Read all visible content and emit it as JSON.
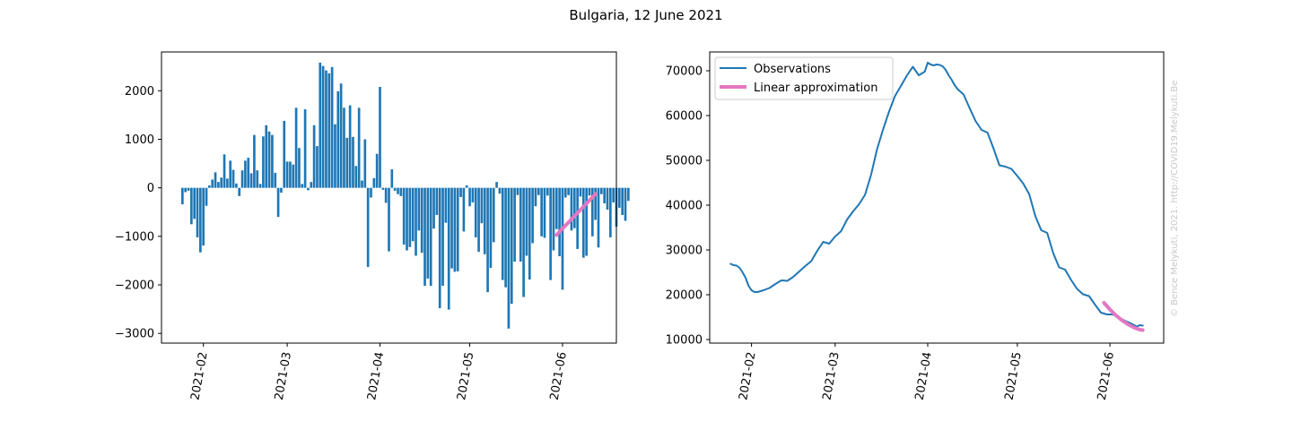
{
  "figure": {
    "title": "Bulgaria, 12 June 2021",
    "watermark": "© Bence Melykuti, 2021. http://COVID19.Melykuti.Be"
  },
  "colors": {
    "bar": "#1f77b4",
    "observations": "#1f77b4",
    "approximation": "#e377c2",
    "axis": "#000000"
  },
  "chart_data": [
    {
      "type": "bar",
      "title": "",
      "xlabel": "",
      "ylabel": "",
      "x_start": "2021-01-25",
      "x_end": "2021-06-12",
      "xlim": [
        "2021-01-18",
        "2021-06-19"
      ],
      "ylim": [
        -3200,
        2800
      ],
      "yticks": [
        -3000,
        -2000,
        -1000,
        0,
        1000,
        2000
      ],
      "xticks": [
        "2021-02",
        "2021-03",
        "2021-04",
        "2021-05",
        "2021-06"
      ],
      "grid": false,
      "values": [
        -340,
        -90,
        -60,
        -750,
        -640,
        -1020,
        -1330,
        -1190,
        -370,
        50,
        170,
        320,
        120,
        210,
        690,
        190,
        560,
        370,
        90,
        -170,
        360,
        560,
        620,
        300,
        1090,
        360,
        80,
        1060,
        1290,
        1160,
        1090,
        310,
        -600,
        -100,
        1380,
        540,
        540,
        480,
        1650,
        820,
        80,
        1620,
        -50,
        120,
        1290,
        860,
        2580,
        2510,
        2420,
        2360,
        2490,
        1310,
        1990,
        2150,
        1650,
        1030,
        1700,
        1050,
        450,
        1650,
        150,
        1000,
        -1630,
        -200,
        200,
        700,
        2080,
        -40,
        -310,
        -1310,
        380,
        -60,
        -130,
        -170,
        -1170,
        -1290,
        -1220,
        -1100,
        -1400,
        -880,
        -1340,
        -2020,
        -1870,
        -2020,
        -840,
        -560,
        -2480,
        -2020,
        -720,
        -2510,
        -1660,
        -1730,
        -1720,
        -190,
        -900,
        50,
        -380,
        -300,
        -1020,
        -1320,
        -730,
        -1370,
        -2150,
        -1650,
        -1120,
        120,
        -120,
        -1900,
        -2050,
        -2900,
        -2390,
        -1520,
        -150,
        -1520,
        -2250,
        -1400,
        -1890,
        -1140,
        -380,
        -150,
        -1000,
        -1030,
        -160,
        -1900,
        -1290,
        -850,
        -1410,
        -2100,
        -200,
        -150,
        -880,
        -830,
        -1260,
        -180,
        -1440,
        -1400,
        -160,
        -1000,
        -660,
        -1230,
        -130,
        -320,
        -450,
        -1020,
        -300,
        -800,
        -410,
        -560,
        -680,
        -270
      ],
      "series": [
        {
          "name": "",
          "type": "line",
          "x": [
            "2021-05-30",
            "2021-06-12"
          ],
          "y": [
            -970,
            -130
          ]
        }
      ]
    },
    {
      "type": "line",
      "title": "",
      "xlabel": "",
      "ylabel": "",
      "xlim": [
        "2021-01-18",
        "2021-06-19"
      ],
      "ylim": [
        9200,
        74200
      ],
      "yticks": [
        10000,
        20000,
        30000,
        40000,
        50000,
        60000,
        70000
      ],
      "xticks": [
        "2021-02",
        "2021-03",
        "2021-04",
        "2021-05",
        "2021-06"
      ],
      "grid": false,
      "legend": "top-left",
      "series": [
        {
          "name": "Observations",
          "x": [
            "2021-01-25",
            "2021-01-26",
            "2021-01-27",
            "2021-01-28",
            "2021-01-29",
            "2021-01-30",
            "2021-01-31",
            "2021-02-01",
            "2021-02-02",
            "2021-02-03",
            "2021-02-05",
            "2021-02-07",
            "2021-02-09",
            "2021-02-11",
            "2021-02-13",
            "2021-02-15",
            "2021-02-17",
            "2021-02-19",
            "2021-02-21",
            "2021-02-23",
            "2021-02-25",
            "2021-02-27",
            "2021-03-01",
            "2021-03-03",
            "2021-03-05",
            "2021-03-07",
            "2021-03-09",
            "2021-03-11",
            "2021-03-13",
            "2021-03-15",
            "2021-03-17",
            "2021-03-19",
            "2021-03-21",
            "2021-03-23",
            "2021-03-25",
            "2021-03-27",
            "2021-03-29",
            "2021-03-31",
            "2021-04-01",
            "2021-04-02",
            "2021-04-03",
            "2021-04-04",
            "2021-04-05",
            "2021-04-06",
            "2021-04-07",
            "2021-04-08",
            "2021-04-09",
            "2021-04-10",
            "2021-04-11",
            "2021-04-13",
            "2021-04-15",
            "2021-04-17",
            "2021-04-19",
            "2021-04-21",
            "2021-04-23",
            "2021-04-25",
            "2021-04-27",
            "2021-04-29",
            "2021-05-01",
            "2021-05-03",
            "2021-05-05",
            "2021-05-07",
            "2021-05-09",
            "2021-05-11",
            "2021-05-13",
            "2021-05-15",
            "2021-05-17",
            "2021-05-19",
            "2021-05-21",
            "2021-05-23",
            "2021-05-25",
            "2021-05-27",
            "2021-05-29",
            "2021-05-31",
            "2021-06-02",
            "2021-06-04",
            "2021-06-06",
            "2021-06-08",
            "2021-06-10",
            "2021-06-11",
            "2021-06-12"
          ],
          "y": [
            26900,
            26600,
            26500,
            26000,
            25000,
            23800,
            22000,
            21000,
            20600,
            20600,
            21000,
            21500,
            22400,
            23200,
            23100,
            24000,
            25200,
            26400,
            27500,
            29800,
            31800,
            31400,
            33000,
            34200,
            36800,
            38600,
            40200,
            42300,
            46700,
            52400,
            56800,
            60800,
            64300,
            66600,
            68900,
            70900,
            69000,
            69800,
            71800,
            71400,
            71200,
            71400,
            71300,
            71000,
            70200,
            69000,
            68000,
            66800,
            65900,
            64700,
            61700,
            58800,
            56800,
            56200,
            52700,
            48900,
            48600,
            48100,
            46500,
            44800,
            42400,
            37600,
            34400,
            33800,
            29300,
            26100,
            25600,
            23300,
            21300,
            20100,
            19700,
            17800,
            16000,
            15600,
            15600,
            14900,
            14200,
            13600,
            12900,
            13200,
            13100
          ]
        },
        {
          "name": "Linear approximation",
          "x": [
            "2021-05-30",
            "2021-06-01",
            "2021-06-03",
            "2021-06-05",
            "2021-06-07",
            "2021-06-09",
            "2021-06-11",
            "2021-06-12"
          ],
          "y": [
            18200,
            16700,
            15400,
            14300,
            13400,
            12700,
            12200,
            12100
          ]
        }
      ]
    }
  ]
}
